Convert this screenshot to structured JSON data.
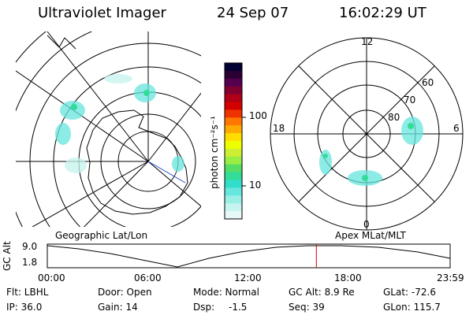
{
  "header": {
    "title": "Ultraviolet Imager",
    "date": "24 Sep 07",
    "time": "16:02:29 UT"
  },
  "colorbar": {
    "unit": "photon cm⁻²s⁻¹",
    "ticks": [
      "100",
      "10"
    ],
    "colors": [
      "#000033",
      "#2a0033",
      "#55004f",
      "#800030",
      "#b00018",
      "#d40000",
      "#ee3300",
      "#ff7700",
      "#ffaa00",
      "#ffdd00",
      "#eeff00",
      "#ccee33",
      "#99ee44",
      "#55dd66",
      "#33dd99",
      "#33ddcc",
      "#66e6dd",
      "#99eee6",
      "#c6f4f0",
      "#e6f9f7"
    ]
  },
  "polar_plot": {
    "labels": {
      "top": "12",
      "bottom": "0",
      "left": "18",
      "right": "6",
      "lat60": "60",
      "lat70": "70",
      "lat80": "80"
    }
  },
  "timeline": {
    "left_label": "Geographic Lat/Lon",
    "right_label": "Apex MLat/MLT",
    "axis_label": "GC Alt",
    "y_ticks": [
      "9.0",
      "1.8"
    ],
    "x_ticks": [
      "00:00",
      "06:00",
      "12:00",
      "18:00",
      "23:59"
    ],
    "current_time_fraction": 0.668
  },
  "info": {
    "filter": "Flt: LBHL",
    "door": "Door: Open",
    "mode": "Mode: Normal",
    "gc_alt": "GC Alt: 8.9 Re",
    "glat": "GLat: -72.6",
    "ip": "IP: 36.0",
    "gain": "Gain: 14",
    "dsp_label": "Dsp:",
    "dsp_value": "-1.5",
    "seq": "Seq: 39",
    "glon": "GLon: 115.7"
  }
}
